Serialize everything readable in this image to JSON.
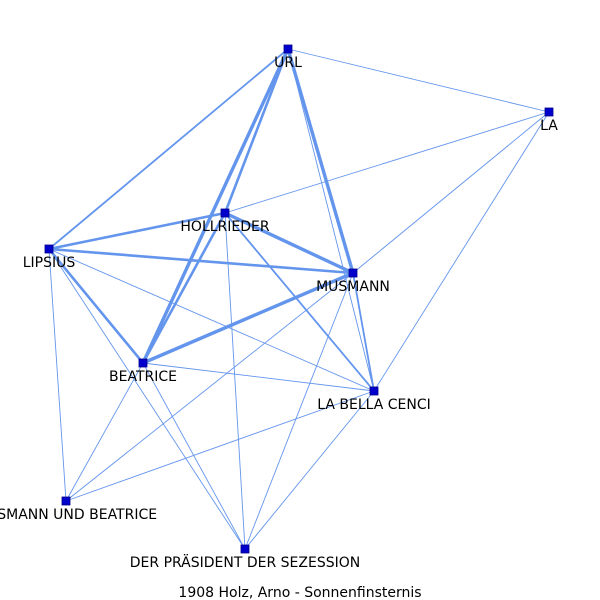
{
  "caption": "1908  Holz,  Arno  -  Sonnenfinsternis",
  "colors": {
    "edge": "#6495ED",
    "node_fill": "#0000CD",
    "node_stroke": "#00008B",
    "label": "#000000"
  },
  "nodes": [
    {
      "id": "url",
      "label": "URL"
    },
    {
      "id": "la",
      "label": "LA"
    },
    {
      "id": "hollrieder",
      "label": "HOLLRIEDER"
    },
    {
      "id": "lipsius",
      "label": "LIPSIUS"
    },
    {
      "id": "musmann",
      "label": "MUSMANN"
    },
    {
      "id": "beatrice",
      "label": "BEATRICE"
    },
    {
      "id": "la-bella-cenci",
      "label": "LA BELLA CENCI"
    },
    {
      "id": "musmann-und-beatrice",
      "label": "MUSMANN UND BEATRICE"
    },
    {
      "id": "praesident",
      "label": "DER PRÄSIDENT DER SEZESSION"
    }
  ],
  "edges": [
    {
      "source": "url",
      "target": "la",
      "weight": 1
    },
    {
      "source": "url",
      "target": "lipsius",
      "weight": 2
    },
    {
      "source": "url",
      "target": "hollrieder",
      "weight": 3
    },
    {
      "source": "url",
      "target": "beatrice",
      "weight": 4
    },
    {
      "source": "url",
      "target": "musmann",
      "weight": 4
    },
    {
      "source": "url",
      "target": "la-bella-cenci",
      "weight": 1
    },
    {
      "source": "la",
      "target": "hollrieder",
      "weight": 1
    },
    {
      "source": "la",
      "target": "musmann",
      "weight": 1
    },
    {
      "source": "la",
      "target": "la-bella-cenci",
      "weight": 1
    },
    {
      "source": "hollrieder",
      "target": "lipsius",
      "weight": 3
    },
    {
      "source": "hollrieder",
      "target": "musmann",
      "weight": 4
    },
    {
      "source": "hollrieder",
      "target": "beatrice",
      "weight": 3
    },
    {
      "source": "hollrieder",
      "target": "la-bella-cenci",
      "weight": 2
    },
    {
      "source": "hollrieder",
      "target": "praesident",
      "weight": 1
    },
    {
      "source": "lipsius",
      "target": "musmann",
      "weight": 3
    },
    {
      "source": "lipsius",
      "target": "beatrice",
      "weight": 3
    },
    {
      "source": "lipsius",
      "target": "la-bella-cenci",
      "weight": 1
    },
    {
      "source": "lipsius",
      "target": "musmann-und-beatrice",
      "weight": 1
    },
    {
      "source": "lipsius",
      "target": "praesident",
      "weight": 1
    },
    {
      "source": "musmann",
      "target": "beatrice",
      "weight": 4
    },
    {
      "source": "musmann",
      "target": "la-bella-cenci",
      "weight": 2
    },
    {
      "source": "musmann",
      "target": "musmann-und-beatrice",
      "weight": 1
    },
    {
      "source": "musmann",
      "target": "praesident",
      "weight": 1
    },
    {
      "source": "beatrice",
      "target": "la-bella-cenci",
      "weight": 1
    },
    {
      "source": "beatrice",
      "target": "musmann-und-beatrice",
      "weight": 1
    },
    {
      "source": "beatrice",
      "target": "praesident",
      "weight": 1
    },
    {
      "source": "la-bella-cenci",
      "target": "musmann-und-beatrice",
      "weight": 1
    },
    {
      "source": "la-bella-cenci",
      "target": "praesident",
      "weight": 1
    }
  ]
}
